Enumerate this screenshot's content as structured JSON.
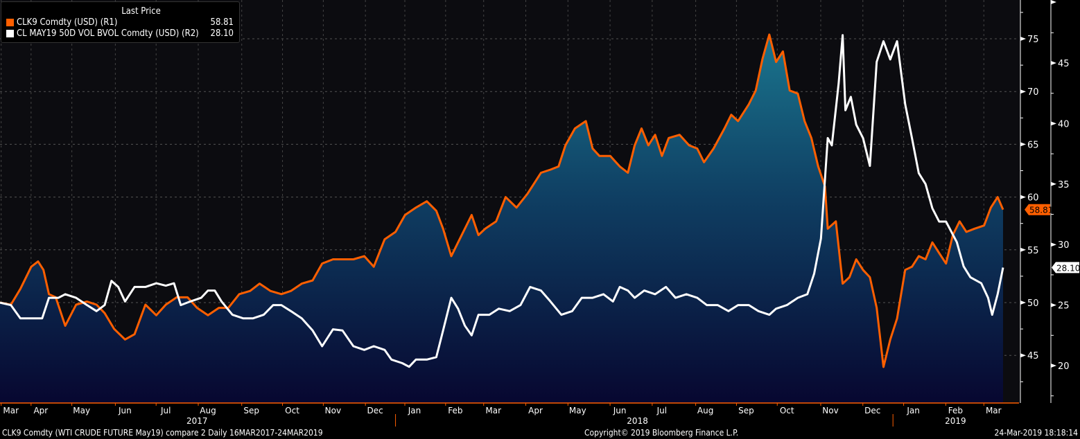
{
  "legend": {
    "title": "Last Price",
    "series": [
      {
        "name": "CLK9 Comdty (USD)  (R1)",
        "value": "58.81",
        "color": "#ff5f00"
      },
      {
        "name": "CL MAY19 50D VOL BVOL Comdty (USD)  (R2)",
        "value": "28.10",
        "color": "#ffffff"
      }
    ]
  },
  "footer": {
    "description": "CLK9 Comdty (WTI CRUDE FUTURE  May19) compare 2  Daily 16MAR2017-24MAR2019",
    "copyright": "Copyright© 2019 Bloomberg Finance L.P.",
    "timestamp": "24-Mar-2019 18:18:14"
  },
  "chart_data": {
    "type": "line",
    "x_unit": "days since 16-Mar-2017",
    "xlim": [
      0,
      738
    ],
    "x_months": [
      [
        "Mar",
        8
      ],
      [
        "Apr",
        30
      ],
      [
        "May",
        60
      ],
      [
        "Jun",
        92
      ],
      [
        "Jul",
        122
      ],
      [
        "Aug",
        153
      ],
      [
        "Sep",
        185
      ],
      [
        "Oct",
        215
      ],
      [
        "Nov",
        245
      ],
      [
        "Dec",
        276
      ],
      [
        "Jan",
        305
      ],
      [
        "Feb",
        335
      ],
      [
        "Mar",
        363
      ],
      [
        "Apr",
        394
      ],
      [
        "May",
        425
      ],
      [
        "Jun",
        456
      ],
      [
        "Jul",
        487
      ],
      [
        "Aug",
        519
      ],
      [
        "Sep",
        549
      ],
      [
        "Oct",
        579
      ],
      [
        "Nov",
        611
      ],
      [
        "Dec",
        642
      ],
      [
        "Jan",
        672
      ],
      [
        "Feb",
        703
      ],
      [
        "Mar",
        731
      ]
    ],
    "x_years": [
      [
        "2017",
        145
      ],
      [
        "2018",
        469
      ],
      [
        "2019",
        703
      ]
    ],
    "year_breaks": [
      291,
      657
    ],
    "axes": {
      "R1": {
        "ticks": [
          "45",
          "50",
          "55",
          "60",
          "65",
          "70",
          "75"
        ],
        "ylim": [
          41.5,
          78
        ]
      },
      "R2": {
        "ticks": [
          "20",
          "25",
          "30",
          "35",
          "40",
          "45"
        ],
        "ylim": [
          17,
          50
        ]
      }
    },
    "series": [
      {
        "name": "CLK9 Comdty",
        "axis": "R1",
        "color": "#ff5f00",
        "last": "58.81",
        "area": true,
        "points": [
          [
            0,
            50.0
          ],
          [
            8,
            49.8
          ],
          [
            15,
            51.3
          ],
          [
            23,
            53.4
          ],
          [
            28,
            53.9
          ],
          [
            32,
            53.1
          ],
          [
            36,
            50.8
          ],
          [
            41,
            50.5
          ],
          [
            48,
            47.8
          ],
          [
            56,
            49.8
          ],
          [
            64,
            50.1
          ],
          [
            71,
            49.8
          ],
          [
            77,
            49.0
          ],
          [
            84,
            47.5
          ],
          [
            92,
            46.5
          ],
          [
            99,
            47.0
          ],
          [
            107,
            49.8
          ],
          [
            115,
            48.8
          ],
          [
            122,
            49.8
          ],
          [
            130,
            50.5
          ],
          [
            138,
            50.5
          ],
          [
            145,
            49.5
          ],
          [
            153,
            48.8
          ],
          [
            161,
            49.5
          ],
          [
            168,
            49.5
          ],
          [
            176,
            50.8
          ],
          [
            184,
            51.1
          ],
          [
            191,
            51.8
          ],
          [
            199,
            51.1
          ],
          [
            207,
            50.8
          ],
          [
            214,
            51.1
          ],
          [
            222,
            51.8
          ],
          [
            230,
            52.1
          ],
          [
            237,
            53.7
          ],
          [
            245,
            54.1
          ],
          [
            252,
            54.1
          ],
          [
            260,
            54.1
          ],
          [
            268,
            54.4
          ],
          [
            275,
            53.4
          ],
          [
            283,
            56.0
          ],
          [
            291,
            56.7
          ],
          [
            298,
            58.3
          ],
          [
            306,
            59.0
          ],
          [
            314,
            59.6
          ],
          [
            321,
            58.7
          ],
          [
            326,
            57.0
          ],
          [
            332,
            54.4
          ],
          [
            337,
            55.7
          ],
          [
            342,
            57.0
          ],
          [
            347,
            58.3
          ],
          [
            352,
            56.4
          ],
          [
            357,
            57.0
          ],
          [
            365,
            57.7
          ],
          [
            372,
            60.0
          ],
          [
            380,
            59.0
          ],
          [
            388,
            60.3
          ],
          [
            393,
            61.3
          ],
          [
            398,
            62.3
          ],
          [
            405,
            62.6
          ],
          [
            411,
            62.9
          ],
          [
            416,
            64.9
          ],
          [
            423,
            66.5
          ],
          [
            431,
            67.2
          ],
          [
            436,
            64.6
          ],
          [
            441,
            63.9
          ],
          [
            449,
            63.9
          ],
          [
            456,
            62.9
          ],
          [
            462,
            62.3
          ],
          [
            467,
            64.9
          ],
          [
            472,
            66.5
          ],
          [
            477,
            64.9
          ],
          [
            482,
            65.9
          ],
          [
            487,
            63.9
          ],
          [
            492,
            65.6
          ],
          [
            500,
            65.9
          ],
          [
            507,
            64.9
          ],
          [
            513,
            64.6
          ],
          [
            518,
            63.3
          ],
          [
            525,
            64.6
          ],
          [
            533,
            66.5
          ],
          [
            538,
            67.8
          ],
          [
            543,
            67.2
          ],
          [
            551,
            68.8
          ],
          [
            556,
            70.1
          ],
          [
            561,
            73.1
          ],
          [
            566,
            75.4
          ],
          [
            571,
            72.8
          ],
          [
            576,
            73.8
          ],
          [
            581,
            70.1
          ],
          [
            587,
            69.8
          ],
          [
            592,
            67.2
          ],
          [
            597,
            65.6
          ],
          [
            602,
            62.9
          ],
          [
            607,
            61.0
          ],
          [
            609,
            57.0
          ],
          [
            615,
            57.7
          ],
          [
            620,
            51.8
          ],
          [
            625,
            52.4
          ],
          [
            630,
            54.1
          ],
          [
            635,
            53.1
          ],
          [
            640,
            52.4
          ],
          [
            645,
            49.5
          ],
          [
            650,
            43.9
          ],
          [
            655,
            46.5
          ],
          [
            660,
            48.5
          ],
          [
            666,
            53.1
          ],
          [
            671,
            53.4
          ],
          [
            676,
            54.4
          ],
          [
            681,
            54.1
          ],
          [
            686,
            55.7
          ],
          [
            691,
            54.7
          ],
          [
            696,
            53.7
          ],
          [
            701,
            56.4
          ],
          [
            706,
            57.7
          ],
          [
            711,
            56.7
          ],
          [
            717,
            57.0
          ],
          [
            724,
            57.3
          ],
          [
            729,
            59.0
          ],
          [
            734,
            60.0
          ],
          [
            738,
            58.81
          ]
        ]
      },
      {
        "name": "CL MAY19 50D VOL BVOL Comdty",
        "axis": "R2",
        "color": "#ffffff",
        "last": "28.10",
        "area": false,
        "points": [
          [
            0,
            25.2
          ],
          [
            8,
            25.0
          ],
          [
            15,
            23.9
          ],
          [
            23,
            23.9
          ],
          [
            31,
            23.9
          ],
          [
            36,
            25.6
          ],
          [
            43,
            25.6
          ],
          [
            48,
            25.9
          ],
          [
            56,
            25.6
          ],
          [
            64,
            25.0
          ],
          [
            71,
            24.5
          ],
          [
            77,
            25.0
          ],
          [
            82,
            27.0
          ],
          [
            87,
            26.5
          ],
          [
            92,
            25.3
          ],
          [
            99,
            26.5
          ],
          [
            107,
            26.5
          ],
          [
            115,
            26.8
          ],
          [
            122,
            26.6
          ],
          [
            128,
            26.8
          ],
          [
            133,
            25.0
          ],
          [
            140,
            25.3
          ],
          [
            148,
            25.6
          ],
          [
            153,
            26.2
          ],
          [
            158,
            26.2
          ],
          [
            163,
            25.3
          ],
          [
            171,
            24.2
          ],
          [
            179,
            23.9
          ],
          [
            186,
            23.9
          ],
          [
            194,
            24.2
          ],
          [
            201,
            25.0
          ],
          [
            207,
            25.0
          ],
          [
            214,
            24.5
          ],
          [
            222,
            23.9
          ],
          [
            230,
            22.9
          ],
          [
            237,
            21.6
          ],
          [
            245,
            23.0
          ],
          [
            252,
            22.9
          ],
          [
            260,
            21.6
          ],
          [
            268,
            21.3
          ],
          [
            275,
            21.6
          ],
          [
            283,
            21.3
          ],
          [
            288,
            20.5
          ],
          [
            296,
            20.2
          ],
          [
            301,
            19.9
          ],
          [
            306,
            20.5
          ],
          [
            314,
            20.5
          ],
          [
            321,
            20.7
          ],
          [
            326,
            22.9
          ],
          [
            332,
            25.6
          ],
          [
            337,
            24.7
          ],
          [
            342,
            23.3
          ],
          [
            347,
            22.5
          ],
          [
            352,
            24.2
          ],
          [
            360,
            24.2
          ],
          [
            367,
            24.7
          ],
          [
            375,
            24.5
          ],
          [
            383,
            25.0
          ],
          [
            390,
            26.5
          ],
          [
            398,
            26.2
          ],
          [
            405,
            25.3
          ],
          [
            413,
            24.2
          ],
          [
            421,
            24.5
          ],
          [
            428,
            25.6
          ],
          [
            436,
            25.6
          ],
          [
            444,
            25.9
          ],
          [
            451,
            25.3
          ],
          [
            456,
            26.5
          ],
          [
            462,
            26.2
          ],
          [
            467,
            25.6
          ],
          [
            474,
            26.2
          ],
          [
            482,
            25.9
          ],
          [
            490,
            26.5
          ],
          [
            497,
            25.6
          ],
          [
            505,
            25.9
          ],
          [
            513,
            25.6
          ],
          [
            520,
            25.0
          ],
          [
            528,
            25.0
          ],
          [
            536,
            24.5
          ],
          [
            543,
            25.0
          ],
          [
            551,
            25.0
          ],
          [
            558,
            24.5
          ],
          [
            566,
            24.2
          ],
          [
            571,
            24.7
          ],
          [
            579,
            25.0
          ],
          [
            587,
            25.6
          ],
          [
            594,
            25.9
          ],
          [
            599,
            27.6
          ],
          [
            604,
            30.5
          ],
          [
            609,
            38.8
          ],
          [
            612,
            38.2
          ],
          [
            617,
            43.3
          ],
          [
            620,
            47.3
          ],
          [
            622,
            41.1
          ],
          [
            626,
            42.2
          ],
          [
            630,
            39.9
          ],
          [
            635,
            38.8
          ],
          [
            640,
            36.5
          ],
          [
            645,
            45.1
          ],
          [
            650,
            46.8
          ],
          [
            655,
            45.3
          ],
          [
            660,
            46.8
          ],
          [
            666,
            41.6
          ],
          [
            671,
            38.8
          ],
          [
            676,
            35.9
          ],
          [
            681,
            35.0
          ],
          [
            686,
            33.0
          ],
          [
            691,
            31.9
          ],
          [
            696,
            31.9
          ],
          [
            704,
            30.2
          ],
          [
            709,
            28.2
          ],
          [
            714,
            27.3
          ],
          [
            722,
            26.8
          ],
          [
            727,
            25.6
          ],
          [
            730,
            24.2
          ],
          [
            734,
            25.9
          ],
          [
            738,
            28.1
          ]
        ]
      }
    ]
  }
}
